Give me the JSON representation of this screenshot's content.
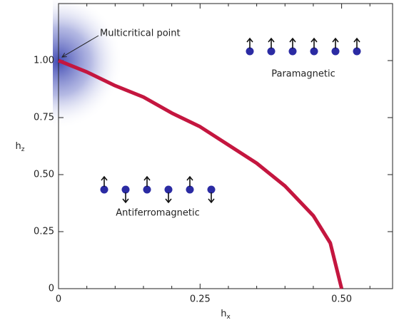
{
  "chart_data": {
    "type": "line",
    "xlabel": "h",
    "xlabel_sub": "x",
    "ylabel": "h",
    "ylabel_sub": "z",
    "x": [
      0,
      0.05,
      0.1,
      0.15,
      0.2,
      0.25,
      0.3,
      0.35,
      0.4,
      0.45,
      0.48,
      0.5
    ],
    "values": [
      1,
      0.95,
      0.89,
      0.84,
      0.77,
      0.71,
      0.63,
      0.55,
      0.45,
      0.32,
      0.2,
      0
    ],
    "color": "#c4163f",
    "xlim": [
      0,
      0.59
    ],
    "ylim": [
      0,
      1.25
    ],
    "xticks": [
      0,
      0.25,
      {
        "value": 0.5,
        "label": "0.50"
      }
    ],
    "xminorticks": [
      0.05,
      0.1,
      0.15,
      0.2,
      0.3,
      0.35,
      0.4,
      0.45,
      0.55
    ],
    "yticks": [
      0,
      0.25,
      {
        "value": 0.5,
        "label": "0.50"
      },
      0.75,
      {
        "value": 1,
        "label": "1.00"
      }
    ],
    "annotations": [
      "Multicritical point",
      "Paramagnetic",
      "Antiferromagnetic"
    ]
  }
}
